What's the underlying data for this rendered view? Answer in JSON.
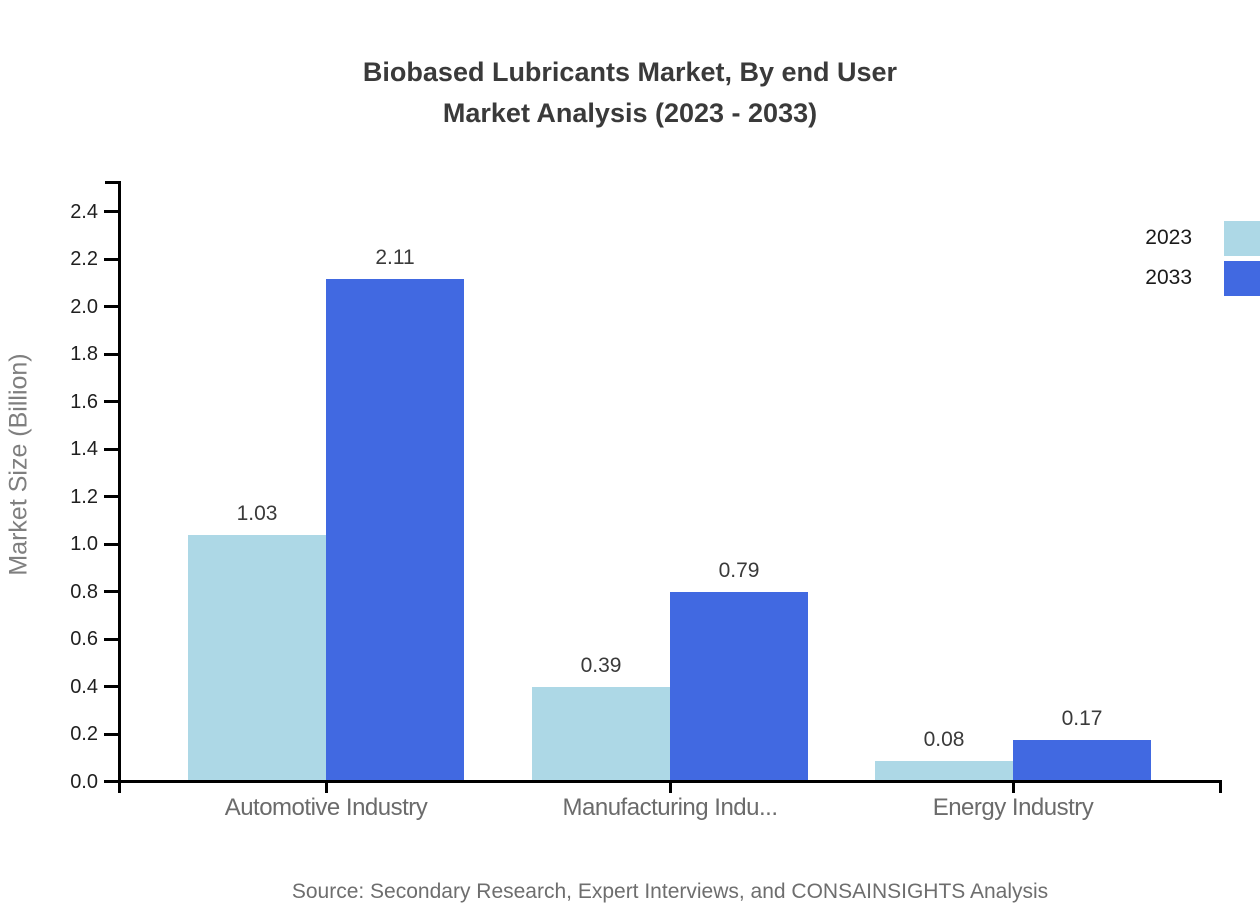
{
  "title": {
    "line1": "Biobased Lubricants Market, By end User",
    "line2": "Market Analysis (2023 - 2033)"
  },
  "chart_data": {
    "type": "bar",
    "categories": [
      "Automotive Industry",
      "Manufacturing Indu...",
      "Energy Industry"
    ],
    "series": [
      {
        "name": "2023",
        "color": "#ADD8E6",
        "values": [
          1.03,
          0.39,
          0.08
        ]
      },
      {
        "name": "2033",
        "color": "#4169E1",
        "values": [
          2.11,
          0.79,
          0.17
        ]
      }
    ],
    "title": "Biobased Lubricants Market, By end User Market Analysis (2023 - 2033)",
    "xlabel": "",
    "ylabel": "Market Size (Billion)",
    "ylim": [
      0.0,
      2.53
    ],
    "yticks": [
      0.0,
      0.2,
      0.4,
      0.6,
      0.8,
      1.0,
      1.2,
      1.4,
      1.6,
      1.8,
      2.0,
      2.2,
      2.4
    ],
    "grid": false,
    "legend_position": "right",
    "value_labels": true
  },
  "source": "Source: Secondary Research, Expert Interviews, and CONSAINSIGHTS Analysis",
  "palette": {
    "axis": "#000000",
    "title_text": "#3a3a3a",
    "tick_text": "#1f1f1f",
    "category_text": "#6b6b6b",
    "value_text": "#3a3a3a",
    "axis_title_text": "#7f7f7f",
    "source_text": "#6e6e6e",
    "background": "#ffffff"
  }
}
